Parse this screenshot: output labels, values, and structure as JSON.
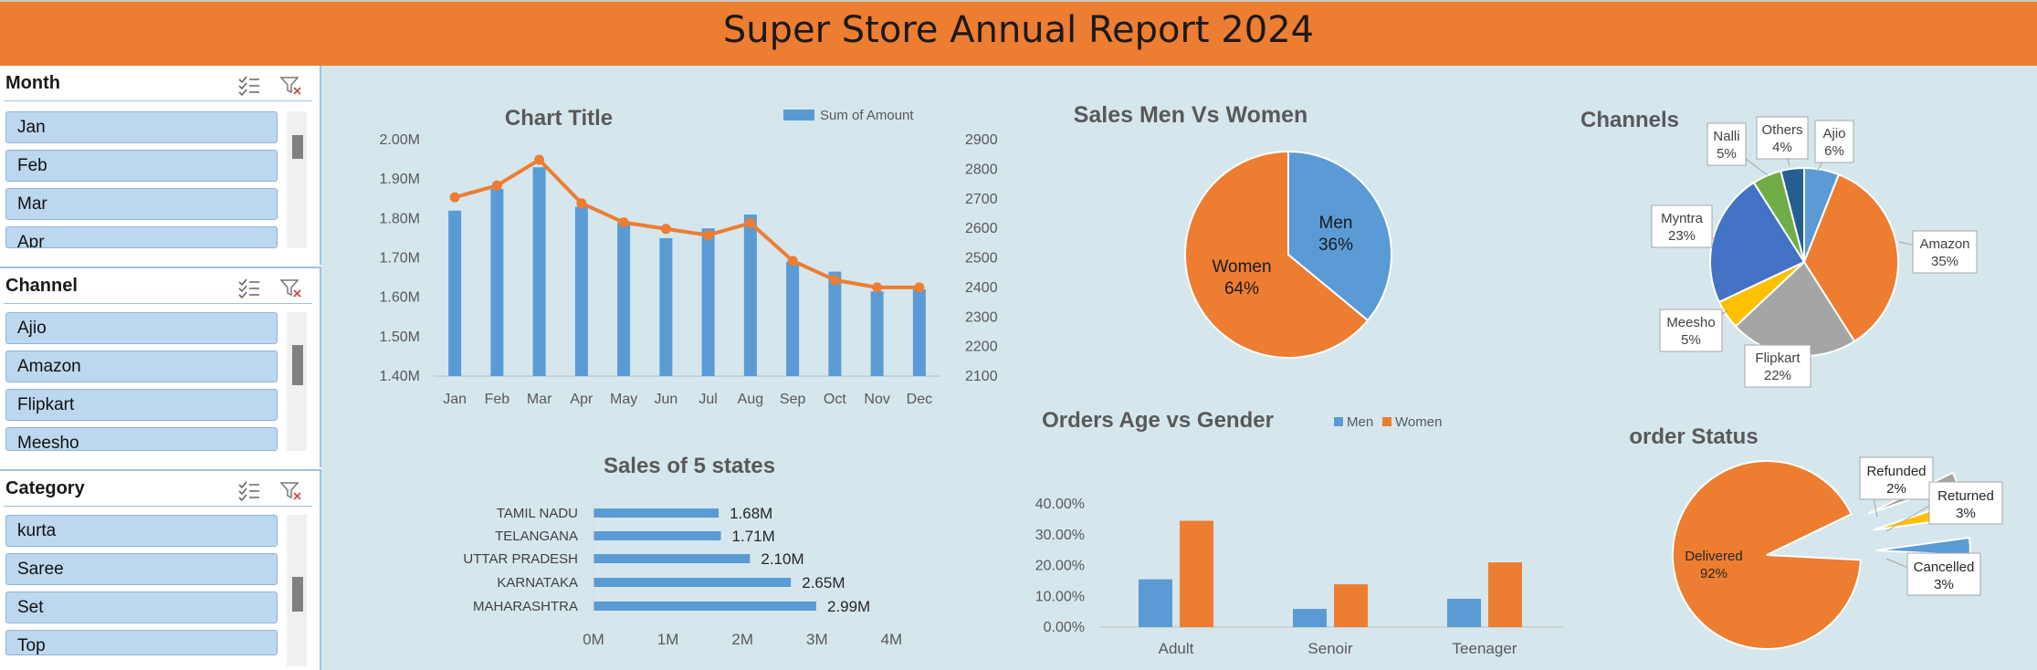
{
  "header": {
    "title": "Super Store Annual Report 2024"
  },
  "slicers": [
    {
      "title": "Month",
      "items": [
        "Jan",
        "Feb",
        "Mar",
        "Apr"
      ],
      "multi_select_icon": "multi-select-icon",
      "clear_icon": "clear-filter-icon"
    },
    {
      "title": "Channel",
      "items": [
        "Ajio",
        "Amazon",
        "Flipkart",
        "Meesho"
      ],
      "multi_select_icon": "multi-select-icon",
      "clear_icon": "clear-filter-icon"
    },
    {
      "title": "Category",
      "items": [
        "kurta",
        "Saree",
        "Set",
        "Top"
      ],
      "multi_select_icon": "multi-select-icon",
      "clear_icon": "clear-filter-icon"
    }
  ],
  "colors": {
    "blue": "#5b9bd5",
    "orange": "#ed7d31",
    "gray": "#a5a5a5",
    "yellow": "#ffc000",
    "darkblue": "#4472c4",
    "green": "#70ad47",
    "navy": "#255e91",
    "header": "#ed7d31",
    "background": "#d6e6ed"
  },
  "chart_data": [
    {
      "id": "monthly",
      "type": "bar",
      "title": "Chart Title",
      "categories": [
        "Jan",
        "Feb",
        "Mar",
        "Apr",
        "May",
        "Jun",
        "Jul",
        "Aug",
        "Sep",
        "Oct",
        "Nov",
        "Dec"
      ],
      "series": [
        {
          "name": "Sum of Amount",
          "type": "bar",
          "axis": "left",
          "values": [
            1.82,
            1.875,
            1.93,
            1.83,
            1.79,
            1.75,
            1.775,
            1.81,
            1.69,
            1.665,
            1.615,
            1.62
          ]
        },
        {
          "type": "line",
          "axis": "right",
          "values": [
            2705,
            2745,
            2832,
            2685,
            2620,
            2598,
            2577,
            2618,
            2490,
            2425,
            2400,
            2400
          ]
        }
      ],
      "y_left": {
        "min": 1.4,
        "max": 2.0,
        "step": 0.1,
        "suffix": "M",
        "ticks": [
          "1.40M",
          "1.50M",
          "1.60M",
          "1.70M",
          "1.80M",
          "1.90M",
          "2.00M"
        ]
      },
      "y_right": {
        "min": 2100,
        "max": 2900,
        "step": 100,
        "ticks": [
          "2100",
          "2200",
          "2300",
          "2400",
          "2500",
          "2600",
          "2700",
          "2800",
          "2900"
        ]
      },
      "legend_position": "top-right"
    },
    {
      "id": "states",
      "type": "bar",
      "orientation": "horizontal",
      "title": "Sales of 5 states",
      "categories": [
        "TAMIL NADU",
        "TELANGANA",
        "UTTAR PRADESH",
        "KARNATAKA",
        "MAHARASHTRA"
      ],
      "values": [
        1.68,
        1.71,
        2.1,
        2.65,
        2.99
      ],
      "value_labels": [
        "1.68M",
        "1.71M",
        "2.10M",
        "2.65M",
        "2.99M"
      ],
      "xlim": [
        0,
        4
      ],
      "x_ticks": [
        "0M",
        "1M",
        "2M",
        "3M",
        "4M"
      ]
    },
    {
      "id": "gender",
      "type": "pie",
      "title": "Sales Men Vs Women",
      "slices": [
        {
          "label": "Men",
          "pct_label": "36%",
          "value": 36
        },
        {
          "label": "Women",
          "pct_label": "64%",
          "value": 64
        }
      ]
    },
    {
      "id": "channels",
      "type": "pie",
      "title": "Channels",
      "slices": [
        {
          "label": "Ajio",
          "pct_label": "6%",
          "value": 6
        },
        {
          "label": "Amazon",
          "pct_label": "35%",
          "value": 35
        },
        {
          "label": "Flipkart",
          "pct_label": "22%",
          "value": 22
        },
        {
          "label": "Meesho",
          "pct_label": "5%",
          "value": 5
        },
        {
          "label": "Myntra",
          "pct_label": "23%",
          "value": 23
        },
        {
          "label": "Nalli",
          "pct_label": "5%",
          "value": 5
        },
        {
          "label": "Others",
          "pct_label": "4%",
          "value": 4
        }
      ]
    },
    {
      "id": "age",
      "type": "bar",
      "title": "Orders Age vs Gender",
      "categories": [
        "Adult",
        "Senoir",
        "Teenager"
      ],
      "series": [
        {
          "name": "Men",
          "values": [
            15.5,
            5.9,
            9.2
          ]
        },
        {
          "name": "Women",
          "values": [
            34.5,
            13.9,
            21.0
          ]
        }
      ],
      "ylim": [
        0,
        40
      ],
      "y_ticks": [
        "0.00%",
        "10.00%",
        "20.00%",
        "30.00%",
        "40.00%"
      ],
      "legend_position": "top"
    },
    {
      "id": "status",
      "type": "pie",
      "title": "order Status",
      "slices": [
        {
          "label": "Cancelled",
          "pct_label": "3%",
          "value": 3
        },
        {
          "label": "Delivered",
          "pct_label": "92%",
          "value": 92
        },
        {
          "label": "Refunded",
          "pct_label": "2%",
          "value": 2
        },
        {
          "label": "Returned",
          "pct_label": "3%",
          "value": 3
        }
      ]
    }
  ]
}
